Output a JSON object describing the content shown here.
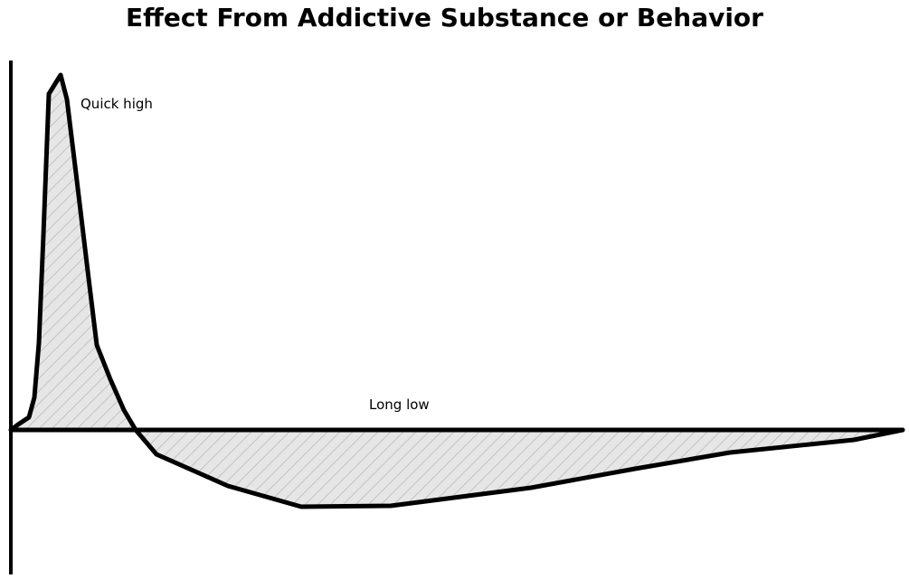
{
  "title": "Effect From Addictive Substance or Behavior",
  "labels": {
    "high": "Quick high",
    "low": "Long low"
  },
  "colors": {
    "line": "#000000",
    "fill": "#e6e6e6",
    "hatch": "#c4c4c4",
    "background": "#ffffff"
  }
}
